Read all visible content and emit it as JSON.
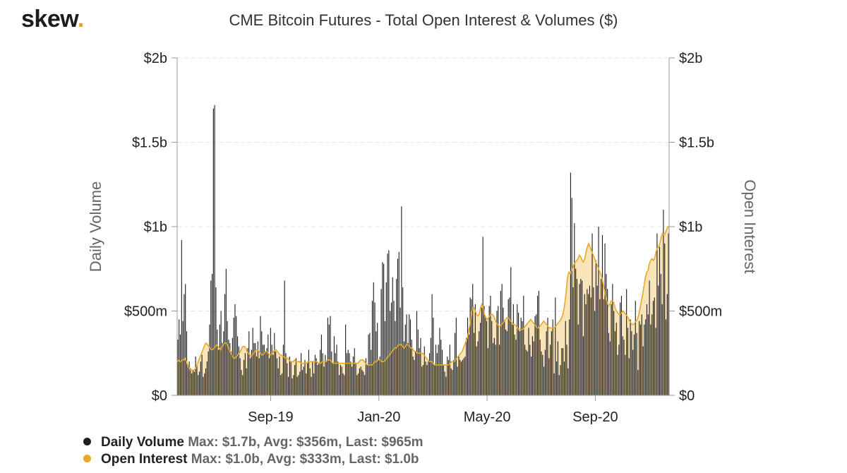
{
  "brand": {
    "name": "skew",
    "dot": "."
  },
  "chart_data": {
    "type": "bar+area",
    "title": "CME Bitcoin Futures - Total Open Interest & Volumes ($)",
    "ylabel_left": "Daily Volume",
    "ylabel_right": "Open Interest",
    "ylim": [
      0,
      2000
    ],
    "unit": "$m",
    "y_ticks_left": [
      "$0",
      "$500m",
      "$1b",
      "$1.5b",
      "$2b"
    ],
    "y_ticks_right": [
      "$0",
      "$500m",
      "$1b",
      "$1.5b",
      "$2b"
    ],
    "x_ticks": [
      "Sep-19",
      "Jan-20",
      "May-20",
      "Sep-20"
    ],
    "grid": true,
    "colors": {
      "volume": "#1f1f1f",
      "open_interest_line": "#e6a92b",
      "open_interest_fill": "#f9e3b8",
      "grid": "#e6e6e6",
      "axis": "#999999"
    },
    "series": [
      {
        "name": "Daily Volume",
        "type": "bar",
        "color": "#1f1f1f",
        "values": [
          330,
          450,
          360,
          920,
          440,
          600,
          660,
          380,
          180,
          200,
          160,
          130,
          150,
          140,
          230,
          180,
          120,
          140,
          200,
          240,
          110,
          130,
          160,
          200,
          260,
          420,
          680,
          720,
          1700,
          1720,
          640,
          390,
          270,
          420,
          500,
          310,
          380,
          600,
          750,
          440,
          330,
          310,
          260,
          340,
          460,
          540,
          470,
          350,
          290,
          220,
          150,
          120,
          210,
          250,
          160,
          280,
          380,
          220,
          270,
          400,
          310,
          310,
          230,
          320,
          220,
          470,
          380,
          300,
          300,
          260,
          280,
          360,
          220,
          400,
          300,
          240,
          370,
          260,
          220,
          160,
          230,
          120,
          130,
          300,
          680,
          250,
          190,
          110,
          230,
          200,
          100,
          120,
          180,
          220,
          110,
          120,
          140,
          250,
          150,
          170,
          210,
          130,
          190,
          270,
          160,
          110,
          200,
          130,
          240,
          220,
          180,
          190,
          270,
          360,
          250,
          170,
          240,
          200,
          460,
          420,
          470,
          260,
          190,
          350,
          250,
          300,
          200,
          120,
          180,
          170,
          130,
          120,
          420,
          250,
          270,
          250,
          200,
          170,
          230,
          280,
          190,
          120,
          130,
          160,
          170,
          150,
          140,
          120,
          220,
          180,
          360,
          370,
          270,
          560,
          670,
          550,
          380,
          430,
          210,
          230,
          630,
          790,
          780,
          440,
          670,
          840,
          860,
          500,
          550,
          700,
          560,
          440,
          690,
          810,
          850,
          520,
          1120,
          640,
          320,
          420,
          480,
          310,
          480,
          450,
          330,
          230,
          210,
          260,
          500,
          390,
          280,
          340,
          170,
          180,
          290,
          200,
          180,
          200,
          250,
          340,
          600,
          460,
          180,
          300,
          250,
          300,
          400,
          330,
          270,
          180,
          140,
          110,
          230,
          210,
          300,
          160,
          150,
          210,
          370,
          460,
          170,
          230,
          210,
          200,
          210,
          220,
          230,
          340,
          460,
          360,
          580,
          570,
          660,
          370,
          540,
          290,
          320,
          380,
          430,
          520,
          940,
          530,
          470,
          440,
          280,
          530,
          590,
          440,
          310,
          340,
          300,
          500,
          530,
          300,
          620,
          660,
          520,
          440,
          390,
          380,
          570,
          580,
          760,
          420,
          540,
          360,
          330,
          540,
          490,
          380,
          460,
          440,
          590,
          300,
          270,
          260,
          400,
          300,
          230,
          350,
          320,
          470,
          480,
          590,
          620,
          330,
          260,
          240,
          170,
          270,
          380,
          460,
          220,
          300,
          380,
          450,
          130,
          580,
          200,
          320,
          120,
          180,
          280,
          280,
          200,
          440,
          300,
          160,
          450,
          1320,
          1170,
          640,
          1020,
          750,
          690,
          420,
          660,
          690,
          680,
          350,
          600,
          540,
          630,
          600,
          650,
          580,
          960,
          640,
          500,
          800,
          650,
          1000,
          570,
          690,
          950,
          570,
          900,
          720,
          630,
          370,
          320,
          540,
          660,
          500,
          380,
          430,
          240,
          300,
          550,
          590,
          350,
          330,
          240,
          630,
          400,
          220,
          450,
          380,
          270,
          360,
          560,
          370,
          150,
          440,
          420,
          480,
          290,
          420,
          450,
          540,
          480,
          680,
          420,
          480,
          560,
          580,
          400,
          960,
          650,
          880,
          720,
          540,
          1100,
          900,
          450,
          600,
          960
        ]
      },
      {
        "name": "Open Interest",
        "type": "area",
        "color": "#e6a92b",
        "values": [
          200,
          210,
          200,
          200,
          210,
          210,
          220,
          200,
          180,
          160,
          150,
          150,
          150,
          150,
          160,
          180,
          200,
          220,
          240,
          260,
          280,
          300,
          310,
          300,
          290,
          280,
          270,
          270,
          280,
          290,
          300,
          290,
          280,
          270,
          290,
          300,
          310,
          310,
          300,
          280,
          260,
          250,
          230,
          220,
          220,
          230,
          240,
          250,
          260,
          280,
          290,
          290,
          280,
          260,
          250,
          240,
          230,
          240,
          250,
          260,
          270,
          270,
          260,
          250,
          240,
          240,
          250,
          260,
          260,
          250,
          240,
          240,
          250,
          260,
          270,
          270,
          260,
          250,
          240,
          240,
          230,
          230,
          220,
          220,
          220,
          210,
          200,
          200,
          200,
          210,
          200,
          200,
          200,
          200,
          190,
          190,
          190,
          190,
          190,
          200,
          200,
          200,
          200,
          200,
          200,
          200,
          200,
          190,
          190,
          190,
          200,
          200,
          200,
          200,
          210,
          210,
          210,
          200,
          190,
          190,
          190,
          190,
          190,
          190,
          190,
          190,
          190,
          190,
          190,
          190,
          190,
          190,
          190,
          190,
          190,
          190,
          190,
          190,
          200,
          210,
          210,
          210,
          200,
          190,
          180,
          180,
          180,
          180,
          180,
          190,
          200,
          200,
          210,
          210,
          210,
          200,
          200,
          200,
          210,
          220,
          230,
          240,
          250,
          260,
          270,
          280,
          280,
          290,
          300,
          300,
          300,
          290,
          280,
          290,
          300,
          300,
          290,
          280,
          280,
          270,
          260,
          260,
          250,
          250,
          250,
          250,
          250,
          240,
          230,
          220,
          210,
          200,
          200,
          200,
          190,
          180,
          180,
          180,
          180,
          180,
          180,
          180,
          180,
          180,
          180,
          180,
          180,
          190,
          200,
          200,
          200,
          210,
          220,
          230,
          240,
          250,
          260,
          280,
          300,
          320,
          340,
          380,
          420,
          480,
          520,
          520,
          500,
          480,
          470,
          480,
          520,
          540,
          520,
          480,
          460,
          450,
          460,
          470,
          480,
          480,
          470,
          450,
          430,
          420,
          410,
          410,
          420,
          430,
          440,
          450,
          460,
          460,
          450,
          440,
          430,
          420,
          420,
          410,
          400,
          390,
          390,
          390,
          390,
          400,
          410,
          420,
          430,
          440,
          450,
          440,
          430,
          420,
          410,
          400,
          400,
          410,
          420,
          430,
          440,
          430,
          420,
          410,
          400,
          400,
          400,
          400,
          400,
          410,
          420,
          430,
          440,
          450,
          470,
          500,
          550,
          620,
          700,
          730,
          720,
          740,
          760,
          780,
          790,
          800,
          810,
          830,
          820,
          800,
          790,
          810,
          850,
          880,
          900,
          880,
          860,
          840,
          820,
          800,
          780,
          760,
          740,
          720,
          700,
          660,
          620,
          580,
          550,
          530,
          540,
          560,
          560,
          550,
          520,
          500,
          490,
          480,
          480,
          490,
          500,
          490,
          480,
          470,
          460,
          440,
          430,
          420,
          420,
          430,
          440,
          450,
          480,
          520,
          560,
          600,
          650,
          700,
          730,
          740,
          780,
          800,
          810,
          800,
          810,
          850,
          870,
          880,
          900,
          940,
          960,
          950,
          960,
          980,
          1000,
          1000
        ]
      }
    ],
    "legend": [
      {
        "name": "Daily Volume",
        "stats": "Max: $1.7b, Avg: $356m, Last: $965m",
        "color": "#1f1f1f"
      },
      {
        "name": "Open Interest",
        "stats": "Max: $1.0b, Avg: $333m, Last: $1.0b",
        "color": "#e6a92b"
      }
    ]
  }
}
